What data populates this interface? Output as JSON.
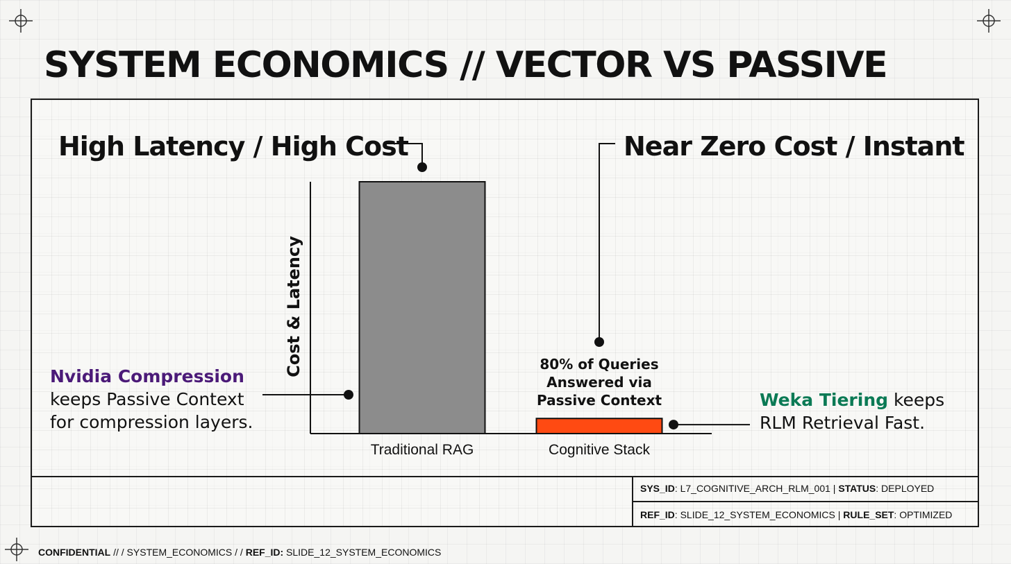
{
  "title": "SYSTEM ECONOMICS // VECTOR VS PASSIVE",
  "colors": {
    "background": "#f5f5f3",
    "grid": "#e0e0de",
    "bar_traditional": "#8c8c8c",
    "bar_cognitive": "#ff4a12",
    "nvidia_purple": "#4b1a78",
    "weka_green": "#0b7a55",
    "ink": "#111111"
  },
  "chart_data": {
    "type": "bar",
    "categories": [
      "Traditional RAG",
      "Cognitive Stack"
    ],
    "values": [
      100,
      6
    ],
    "ylim": [
      0,
      100
    ],
    "xlabel": "",
    "ylabel": "Cost & Latency",
    "grid": true,
    "legend": "none",
    "annotations": [
      {
        "target": "Traditional RAG",
        "text": "High Latency / High Cost"
      },
      {
        "target": "Cognitive Stack",
        "text": "Near Zero Cost / Instant"
      },
      {
        "target": "Cognitive Stack",
        "text": "80% of Queries Answered via Passive Context"
      }
    ]
  },
  "callouts": {
    "high_cost": "High Latency / High Cost",
    "near_zero": "Near Zero Cost / Instant",
    "bar_note": [
      "80% of Queries",
      "Answered via",
      "Passive Context"
    ],
    "nvidia": {
      "highlight": "Nvidia Compression",
      "line1": "keeps Passive Context",
      "line2": "for compression layers."
    },
    "weka": {
      "highlight": "Weka Tiering",
      "line1_rest": " keeps",
      "line2": "RLM Retrieval Fast."
    }
  },
  "footer": {
    "sys_id_label": "SYS_ID",
    "sys_id_value": ": L7_COGNITIVE_ARCH_RLM_001 | ",
    "status_label": "STATUS",
    "status_value": ": DEPLOYED",
    "ref_id_label": "REF_ID",
    "ref_id_value": ": SLIDE_12_SYSTEM_ECONOMICS | ",
    "rule_set_label": "RULE_SET",
    "rule_set_value": ": OPTIMIZED",
    "confidential_label": "CONFIDENTIAL",
    "confidential_mid": " // / SYSTEM_ECONOMICS / / ",
    "conf_ref_label": "REF_ID:",
    "conf_ref_value": " SLIDE_12_SYSTEM_ECONOMICS"
  }
}
